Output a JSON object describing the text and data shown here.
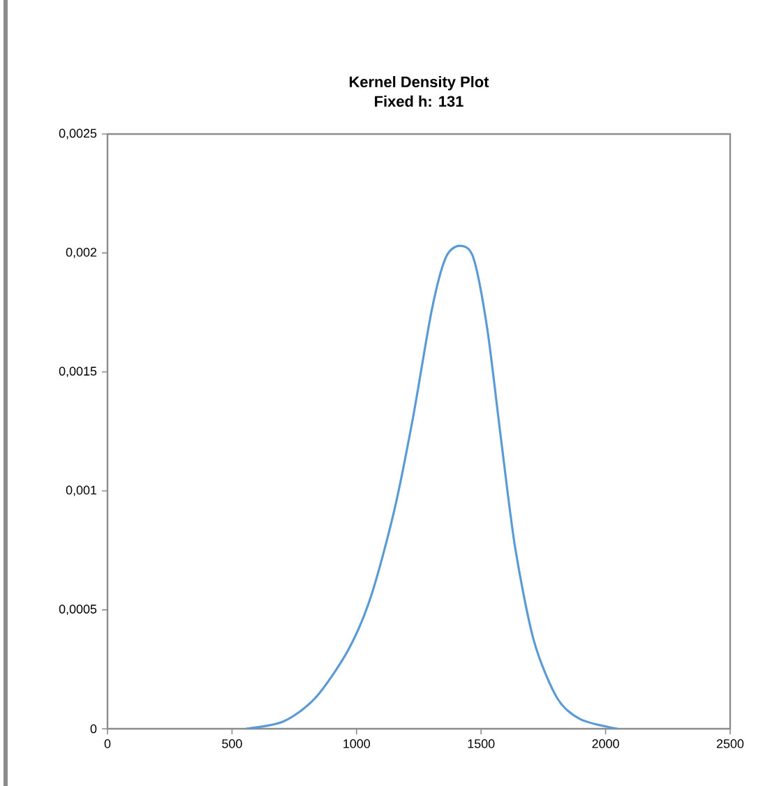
{
  "chart_data": {
    "type": "line",
    "title": "Kernel Density Plot",
    "subtitle": "Fixed h: 131",
    "x": [
      556,
      705,
      835,
      966,
      1059,
      1152,
      1227,
      1302,
      1358,
      1414,
      1469,
      1525,
      1581,
      1637,
      1712,
      1805,
      1899,
      2048
    ],
    "series": [
      {
        "color": "#5b9bd5",
        "values": [
          0,
          3e-05,
          0.00013,
          0.00033,
          0.00056,
          0.00092,
          0.00131,
          0.00176,
          0.00198,
          0.00203,
          0.00198,
          0.00168,
          0.00121,
          0.00076,
          0.00037,
          0.00013,
          4e-05,
          0
        ]
      }
    ],
    "xlim": [
      0,
      2500
    ],
    "xticks": [
      0,
      500,
      1000,
      1500,
      2000,
      2500
    ],
    "ylim": [
      0,
      0.0025
    ],
    "yticks": [
      {
        "value": 0,
        "label": "0"
      },
      {
        "value": 0.0005,
        "label": "0,0005"
      },
      {
        "value": 0.001,
        "label": "0,001"
      },
      {
        "value": 0.0015,
        "label": "0,0015"
      },
      {
        "value": 0.002,
        "label": "0,002"
      },
      {
        "value": 0.0025,
        "label": "0,0025"
      }
    ],
    "grid": false,
    "legend": false,
    "marker": "none",
    "line_style": "solid"
  }
}
